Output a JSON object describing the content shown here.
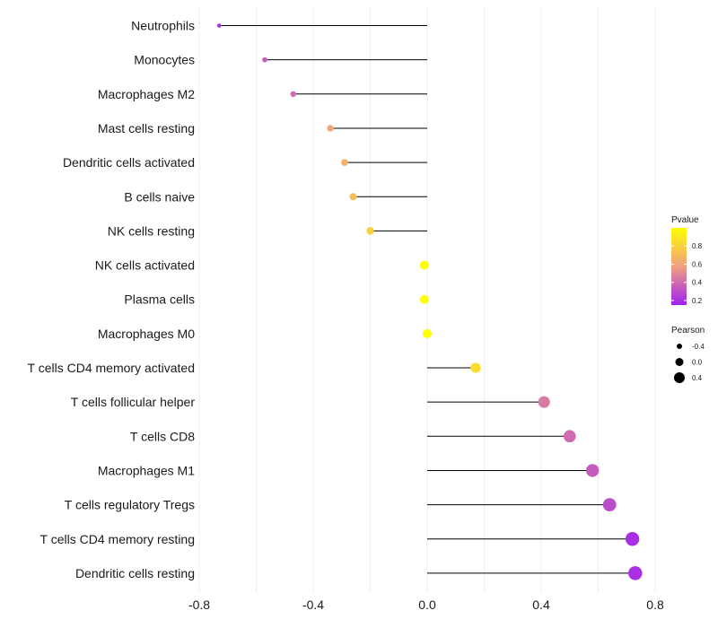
{
  "chart_data": {
    "type": "lollipop",
    "categories": [
      "Neutrophils",
      "Monocytes",
      "Macrophages M2",
      "Mast cells resting",
      "Dendritic cells activated",
      "B cells naive",
      "NK cells resting",
      "NK cells activated",
      "Plasma cells",
      "Macrophages M0",
      "T cells CD4 memory activated",
      "T cells follicular helper",
      "T cells CD8",
      "Macrophages M1",
      "T cells regulatory  Tregs",
      "T cells CD4 memory resting",
      "Dendritic cells resting"
    ],
    "values": [
      -0.73,
      -0.57,
      -0.47,
      -0.34,
      -0.29,
      -0.26,
      -0.2,
      -0.01,
      -0.01,
      0.0,
      0.17,
      0.41,
      0.5,
      0.58,
      0.64,
      0.72,
      0.73
    ],
    "pvalues": [
      0.2,
      0.35,
      0.4,
      0.6,
      0.65,
      0.7,
      0.8,
      0.99,
      0.99,
      1.0,
      0.85,
      0.45,
      0.4,
      0.35,
      0.3,
      0.2,
      0.2
    ],
    "xlim": [
      -0.8,
      0.8
    ],
    "xticks": [
      "-0.8",
      "-0.4",
      "0.0",
      "0.4",
      "0.8"
    ],
    "xtick_values": [
      -0.8,
      -0.4,
      0.0,
      0.4,
      0.8
    ],
    "xgrid_values": [
      -0.6,
      -0.2,
      0.2,
      0.6
    ],
    "legend_color": {
      "title": "Pvalue",
      "labels": [
        "0.8",
        "0.6",
        "0.4",
        "0.2"
      ],
      "label_values": [
        0.8,
        0.6,
        0.4,
        0.2
      ],
      "range": [
        0.15,
        1.0
      ],
      "low_color": "#a020f0",
      "mid_color": "#f0a080",
      "high_color": "#ffff00"
    },
    "legend_size": {
      "title": "Pearson",
      "labels": [
        "-0.4",
        "0.0",
        "0.4"
      ],
      "label_values": [
        -0.4,
        0.0,
        0.4
      ]
    },
    "colors": {
      "stem": "#000000",
      "grid": "#ebebeb"
    }
  }
}
